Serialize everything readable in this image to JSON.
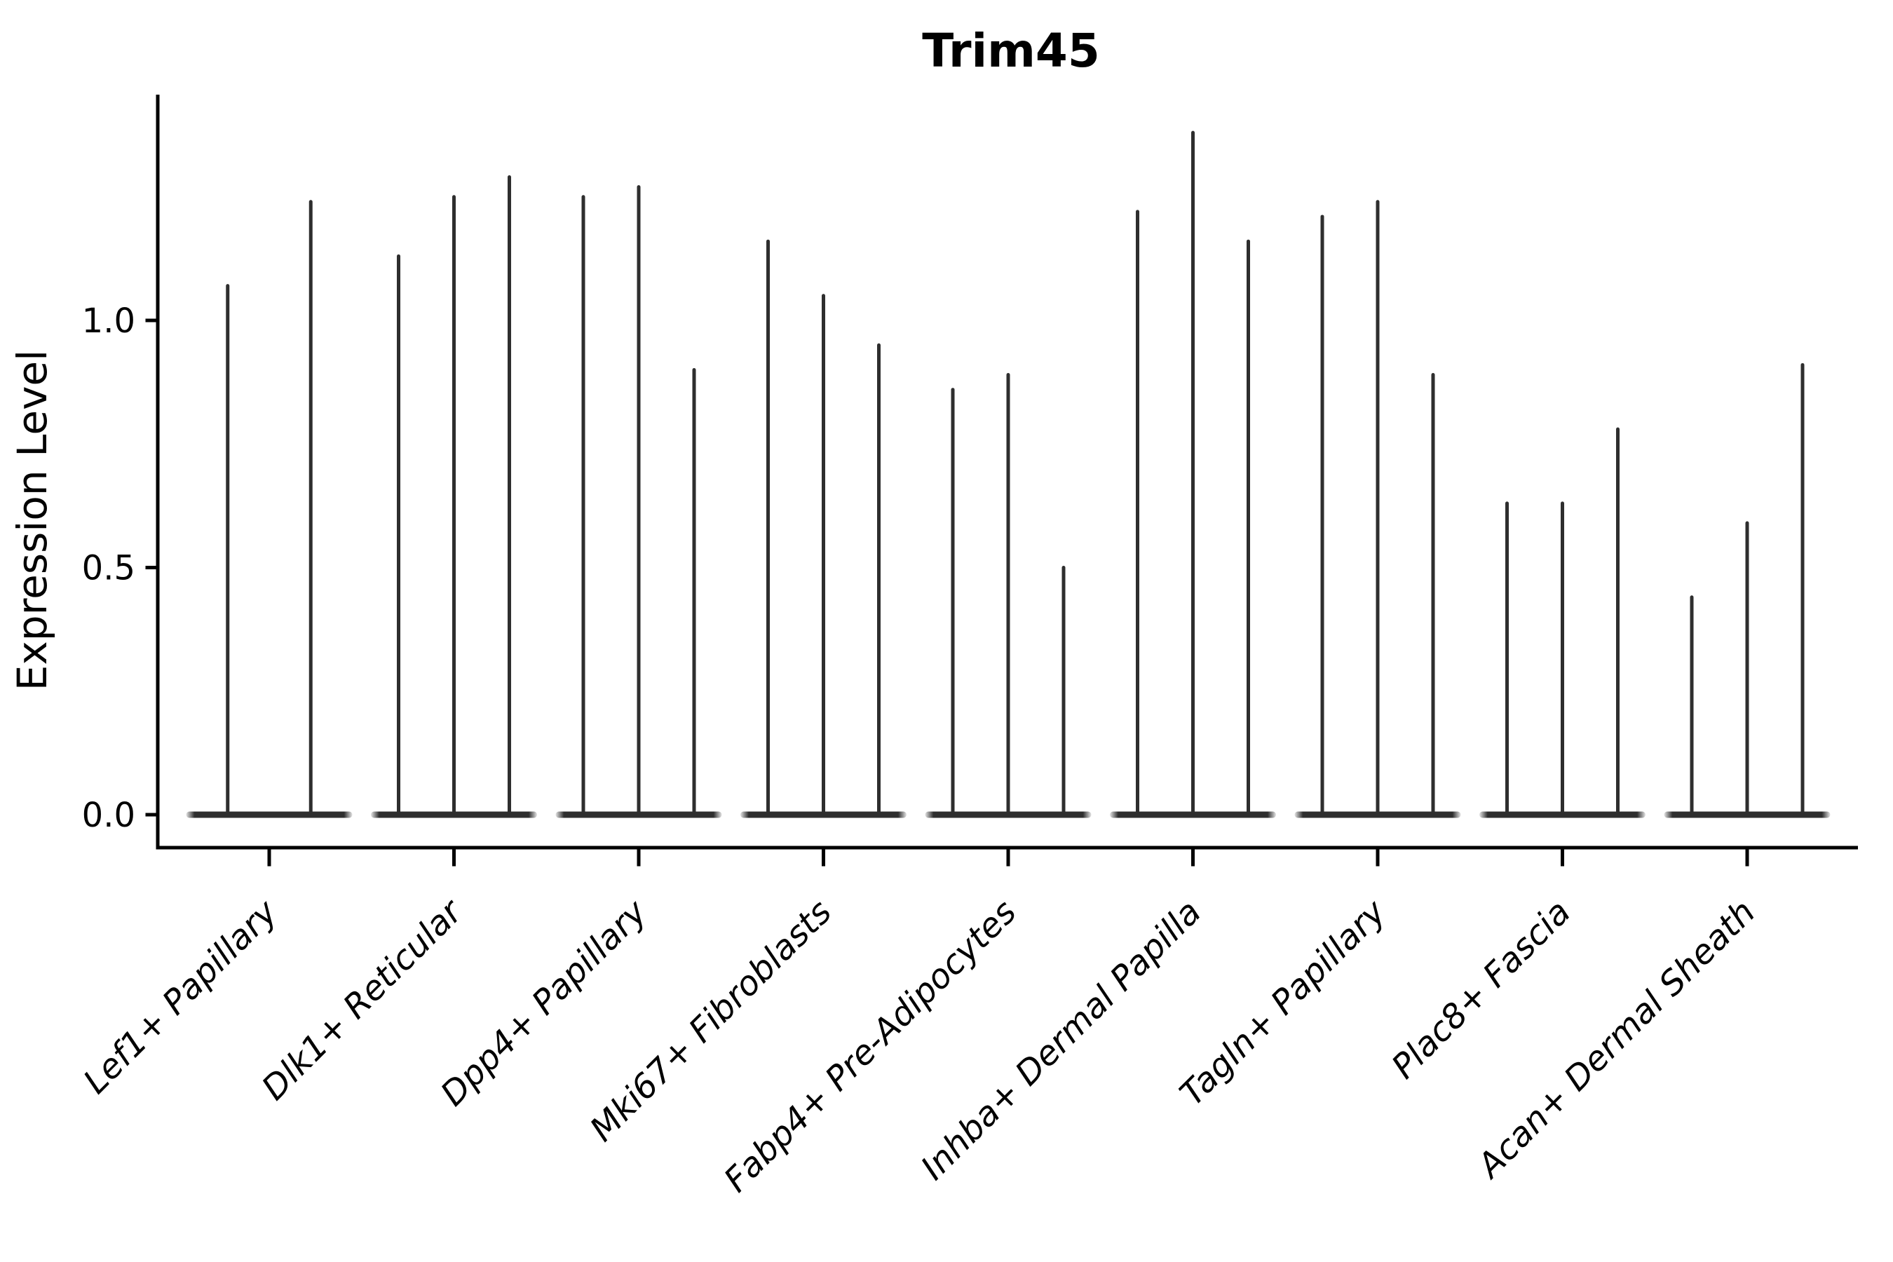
{
  "chart_data": {
    "type": "violin",
    "title": "Trim45",
    "ylabel": "Expression Level",
    "xlabel": "",
    "grid": false,
    "legend": null,
    "background": "#ffffff",
    "yticks": [
      "0.0",
      "0.5",
      "1.0"
    ],
    "ytick_values": [
      0.0,
      0.5,
      1.0
    ],
    "ylim": [
      -0.07,
      1.46
    ],
    "x_label_rotation_deg": 45,
    "description": "Sparse single-cell expression violin plot: each cluster shows 2-3 extremely thin spike-shaped violins rising from a wide flat base at 0; spike top = max expression level.",
    "categories": [
      "Lef1+ Papillary",
      "Dlk1+ Reticular",
      "Dpp4+ Papillary",
      "Mki67+ Fibroblasts",
      "Fabp4+ Pre-Adipocytes",
      "Inhba+ Dermal Papilla",
      "Tagln+ Papillary",
      "Plac8+ Fascia",
      "Acan+ Dermal Sheath"
    ],
    "series": [
      {
        "category": "Lef1+ Papillary",
        "spike_maxima": [
          1.07,
          1.24
        ]
      },
      {
        "category": "Dlk1+ Reticular",
        "spike_maxima": [
          1.13,
          1.25,
          1.29
        ]
      },
      {
        "category": "Dpp4+ Papillary",
        "spike_maxima": [
          1.25,
          1.27,
          0.9
        ]
      },
      {
        "category": "Mki67+ Fibroblasts",
        "spike_maxima": [
          1.16,
          1.05,
          0.95
        ]
      },
      {
        "category": "Fabp4+ Pre-Adipocytes",
        "spike_maxima": [
          0.86,
          0.89,
          0.5
        ]
      },
      {
        "category": "Inhba+ Dermal Papilla",
        "spike_maxima": [
          1.22,
          1.38,
          1.16
        ]
      },
      {
        "category": "Tagln+ Papillary",
        "spike_maxima": [
          1.21,
          1.24,
          0.89
        ]
      },
      {
        "category": "Plac8+ Fascia",
        "spike_maxima": [
          0.63,
          0.63,
          0.78
        ]
      },
      {
        "category": "Acan+ Dermal Sheath",
        "spike_maxima": [
          0.44,
          0.59,
          0.91
        ]
      }
    ],
    "colors": {
      "violin": "#2e2e2e",
      "axis": "#000000",
      "text": "#000000",
      "background": "#ffffff"
    }
  }
}
